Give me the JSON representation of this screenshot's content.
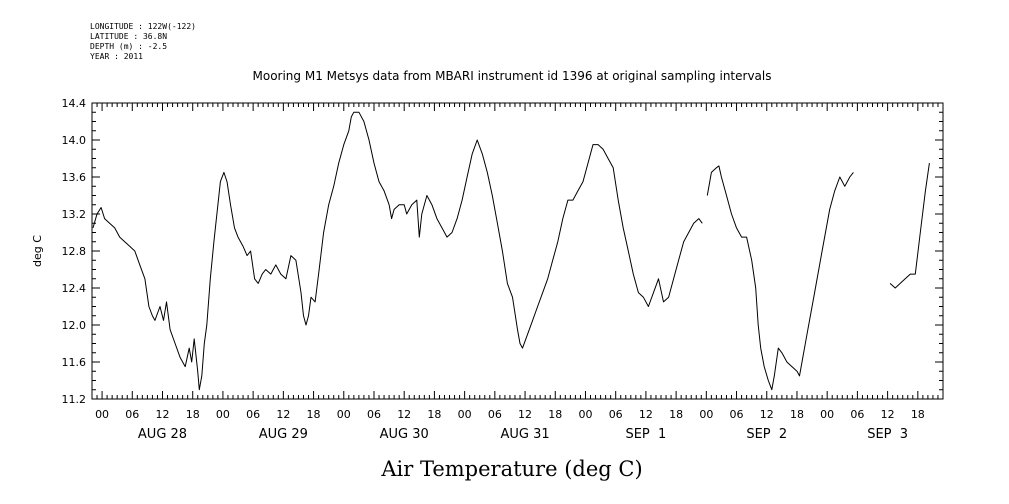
{
  "header": {
    "lines": [
      "LONGITUDE : 122W(-122)",
      "LATITUDE : 36.8N",
      "DEPTH (m) : -2.5",
      "YEAR : 2011"
    ]
  },
  "chart_data": {
    "type": "line",
    "title": "Mooring M1 Metsys data from MBARI instrument id 1396 at original sampling intervals",
    "xlabel": "Air Temperature (deg C)",
    "ylabel": "deg C",
    "ylim": [
      11.2,
      14.4
    ],
    "yticks": [
      "11.2",
      "11.6",
      "12.0",
      "12.4",
      "12.8",
      "13.2",
      "13.6",
      "14.0",
      "14.4"
    ],
    "xlim_hours": [
      -2,
      167
    ],
    "hour_tick_labels": [
      "00",
      "06",
      "12",
      "18"
    ],
    "day_labels": [
      "AUG 28",
      "AUG 29",
      "AUG 30",
      "AUG 31",
      "SEP  1",
      "SEP  2",
      "SEP  3"
    ],
    "x_unit": "hours since 2011-08-28 00:00",
    "grid": false,
    "series": [
      {
        "segments": [
          [
            [
              -1.8,
              13.05
            ],
            [
              -1,
              13.2
            ],
            [
              -0.2,
              13.27
            ],
            [
              0.5,
              13.15
            ],
            [
              1.5,
              13.1
            ],
            [
              2.5,
              13.05
            ],
            [
              3.5,
              12.95
            ],
            [
              4.5,
              12.9
            ],
            [
              5.5,
              12.85
            ],
            [
              6.5,
              12.8
            ],
            [
              7.5,
              12.65
            ],
            [
              8.5,
              12.5
            ],
            [
              9.3,
              12.2
            ],
            [
              10,
              12.1
            ],
            [
              10.5,
              12.05
            ],
            [
              11.5,
              12.2
            ],
            [
              12.2,
              12.05
            ],
            [
              12.8,
              12.25
            ],
            [
              13.5,
              11.95
            ],
            [
              14.5,
              11.8
            ],
            [
              15.5,
              11.65
            ],
            [
              16.5,
              11.55
            ],
            [
              17.3,
              11.75
            ],
            [
              17.8,
              11.6
            ],
            [
              18.3,
              11.85
            ],
            [
              19,
              11.5
            ],
            [
              19.3,
              11.3
            ],
            [
              19.8,
              11.45
            ],
            [
              20.3,
              11.8
            ],
            [
              20.8,
              12.0
            ],
            [
              21.5,
              12.5
            ],
            [
              22.2,
              12.9
            ],
            [
              23,
              13.3
            ],
            [
              23.5,
              13.55
            ],
            [
              24.2,
              13.65
            ],
            [
              24.8,
              13.55
            ],
            [
              25.5,
              13.3
            ],
            [
              26.3,
              13.05
            ],
            [
              27,
              12.95
            ],
            [
              28,
              12.85
            ],
            [
              28.8,
              12.75
            ],
            [
              29.5,
              12.8
            ],
            [
              30.3,
              12.5
            ],
            [
              31,
              12.45
            ],
            [
              31.8,
              12.55
            ],
            [
              32.5,
              12.6
            ],
            [
              33.5,
              12.55
            ],
            [
              34.5,
              12.65
            ],
            [
              35.5,
              12.55
            ],
            [
              36.5,
              12.5
            ],
            [
              37.5,
              12.75
            ],
            [
              38.5,
              12.7
            ],
            [
              39.5,
              12.35
            ],
            [
              40,
              12.1
            ],
            [
              40.5,
              12.0
            ],
            [
              41,
              12.1
            ],
            [
              41.5,
              12.3
            ],
            [
              42.3,
              12.25
            ],
            [
              43,
              12.55
            ],
            [
              44,
              13.0
            ],
            [
              45,
              13.3
            ],
            [
              46,
              13.5
            ],
            [
              47,
              13.75
            ],
            [
              48,
              13.95
            ],
            [
              49,
              14.1
            ],
            [
              49.5,
              14.25
            ],
            [
              50,
              14.3
            ],
            [
              51,
              14.3
            ],
            [
              52,
              14.2
            ],
            [
              53,
              14.0
            ],
            [
              54,
              13.75
            ],
            [
              55,
              13.55
            ],
            [
              56,
              13.45
            ],
            [
              57,
              13.3
            ],
            [
              57.5,
              13.15
            ],
            [
              58,
              13.25
            ],
            [
              59,
              13.3
            ],
            [
              60,
              13.3
            ],
            [
              60.5,
              13.2
            ],
            [
              61.5,
              13.3
            ],
            [
              62.5,
              13.35
            ],
            [
              63,
              12.95
            ],
            [
              63.5,
              13.2
            ],
            [
              64.5,
              13.4
            ],
            [
              65.5,
              13.3
            ],
            [
              66.5,
              13.15
            ],
            [
              67.5,
              13.05
            ],
            [
              68.5,
              12.95
            ],
            [
              69.5,
              13.0
            ],
            [
              70.5,
              13.15
            ],
            [
              71.5,
              13.35
            ],
            [
              72.5,
              13.6
            ],
            [
              73.5,
              13.85
            ],
            [
              74.5,
              14.0
            ],
            [
              75.5,
              13.85
            ],
            [
              76.5,
              13.65
            ],
            [
              77.5,
              13.4
            ],
            [
              78.5,
              13.1
            ],
            [
              79.5,
              12.8
            ],
            [
              80.5,
              12.45
            ],
            [
              81.5,
              12.3
            ],
            [
              82.5,
              11.95
            ],
            [
              83,
              11.8
            ],
            [
              83.5,
              11.75
            ],
            [
              84.5,
              11.9
            ],
            [
              85.5,
              12.05
            ],
            [
              86.5,
              12.2
            ],
            [
              87.5,
              12.35
            ],
            [
              88.5,
              12.5
            ],
            [
              89.5,
              12.7
            ],
            [
              90.5,
              12.9
            ],
            [
              91.5,
              13.15
            ],
            [
              92.5,
              13.35
            ],
            [
              93.5,
              13.35
            ],
            [
              94.5,
              13.45
            ],
            [
              95.5,
              13.55
            ],
            [
              96.5,
              13.75
            ],
            [
              97.5,
              13.95
            ],
            [
              98.5,
              13.95
            ],
            [
              99.5,
              13.9
            ],
            [
              100.5,
              13.8
            ],
            [
              101.5,
              13.7
            ],
            [
              102.5,
              13.35
            ],
            [
              103.5,
              13.05
            ],
            [
              104.5,
              12.8
            ],
            [
              105.5,
              12.55
            ],
            [
              106.5,
              12.35
            ],
            [
              107.5,
              12.3
            ],
            [
              108.5,
              12.2
            ],
            [
              109.5,
              12.35
            ],
            [
              110.5,
              12.5
            ],
            [
              111.5,
              12.25
            ],
            [
              112.5,
              12.3
            ],
            [
              113.5,
              12.5
            ],
            [
              114.5,
              12.7
            ],
            [
              115.5,
              12.9
            ],
            [
              116.5,
              13.0
            ],
            [
              117.5,
              13.1
            ],
            [
              118.5,
              13.15
            ],
            [
              119.2,
              13.1
            ]
          ],
          [
            [
              120.2,
              13.4
            ],
            [
              121,
              13.65
            ],
            [
              122,
              13.7
            ],
            [
              122.5,
              13.72
            ],
            [
              123,
              13.6
            ],
            [
              124,
              13.4
            ],
            [
              125,
              13.2
            ],
            [
              126,
              13.05
            ],
            [
              127,
              12.95
            ],
            [
              128,
              12.95
            ],
            [
              129,
              12.7
            ],
            [
              129.8,
              12.4
            ],
            [
              130.3,
              12.0
            ],
            [
              130.8,
              11.75
            ],
            [
              131.5,
              11.55
            ],
            [
              132.3,
              11.4
            ],
            [
              133,
              11.3
            ],
            [
              133.5,
              11.45
            ],
            [
              134.3,
              11.75
            ],
            [
              135,
              11.7
            ],
            [
              136,
              11.6
            ],
            [
              137,
              11.55
            ],
            [
              138,
              11.5
            ],
            [
              138.5,
              11.45
            ],
            [
              140,
              11.9
            ],
            [
              141.5,
              12.35
            ],
            [
              143,
              12.8
            ],
            [
              144.5,
              13.25
            ],
            [
              145.5,
              13.45
            ],
            [
              146.5,
              13.6
            ],
            [
              147.5,
              13.5
            ],
            [
              148.5,
              13.6
            ],
            [
              149.2,
              13.65
            ]
          ],
          [
            [
              156.5,
              12.45
            ],
            [
              157.5,
              12.4
            ],
            [
              158.5,
              12.45
            ],
            [
              159.5,
              12.5
            ],
            [
              160.5,
              12.55
            ],
            [
              161.5,
              12.55
            ],
            [
              162.5,
              13.0
            ],
            [
              163.5,
              13.45
            ],
            [
              164.3,
              13.75
            ]
          ]
        ]
      }
    ]
  }
}
